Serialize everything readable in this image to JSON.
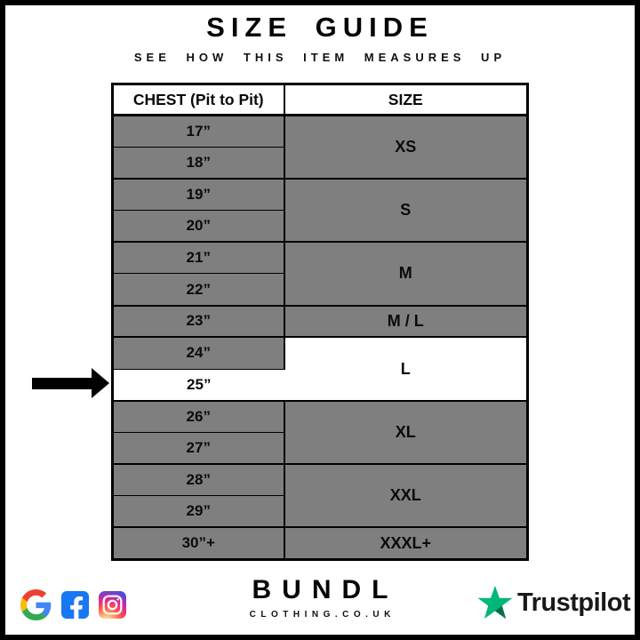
{
  "title": "SIZE GUIDE",
  "subtitle": "SEE HOW THIS ITEM MEASURES UP",
  "table": {
    "headers": {
      "chest": "CHEST (Pit to Pit)",
      "size": "SIZE"
    },
    "groups": [
      {
        "size": "XS",
        "size_highlight": false,
        "rows": [
          {
            "label": "17”",
            "highlight": false
          },
          {
            "label": "18”",
            "highlight": false
          }
        ]
      },
      {
        "size": "S",
        "size_highlight": false,
        "rows": [
          {
            "label": "19”",
            "highlight": false
          },
          {
            "label": "20”",
            "highlight": false
          }
        ]
      },
      {
        "size": "M",
        "size_highlight": false,
        "rows": [
          {
            "label": "21”",
            "highlight": false
          },
          {
            "label": "22”",
            "highlight": false
          }
        ]
      },
      {
        "size": "M / L",
        "size_highlight": false,
        "rows": [
          {
            "label": "23”",
            "highlight": false
          }
        ]
      },
      {
        "size": "L",
        "size_highlight": true,
        "rows": [
          {
            "label": "24”",
            "highlight": false
          },
          {
            "label": "25”",
            "highlight": true
          }
        ]
      },
      {
        "size": "XL",
        "size_highlight": false,
        "rows": [
          {
            "label": "26”",
            "highlight": false
          },
          {
            "label": "27”",
            "highlight": false
          }
        ]
      },
      {
        "size": "XXL",
        "size_highlight": false,
        "rows": [
          {
            "label": "28”",
            "highlight": false
          },
          {
            "label": "29”",
            "highlight": false
          }
        ]
      },
      {
        "size": "XXXL+",
        "size_highlight": false,
        "rows": [
          {
            "label": "30”+",
            "highlight": false
          }
        ]
      }
    ]
  },
  "chart_data": {
    "type": "table",
    "title": "SIZE GUIDE",
    "subtitle": "SEE HOW THIS ITEM MEASURES UP",
    "columns": [
      "CHEST (Pit to Pit)",
      "SIZE"
    ],
    "rows": [
      [
        "17”",
        "XS"
      ],
      [
        "18”",
        "XS"
      ],
      [
        "19”",
        "S"
      ],
      [
        "20”",
        "S"
      ],
      [
        "21”",
        "M"
      ],
      [
        "22”",
        "M"
      ],
      [
        "23”",
        "M / L"
      ],
      [
        "24”",
        "L"
      ],
      [
        "25”",
        "L"
      ],
      [
        "26”",
        "XL"
      ],
      [
        "27”",
        "XL"
      ],
      [
        "28”",
        "XXL"
      ],
      [
        "29”",
        "XXL"
      ],
      [
        "30”+",
        "XXXL+"
      ]
    ],
    "highlighted_row": "25”",
    "highlighted_size": "L"
  },
  "arrow": {
    "target_row": "25”"
  },
  "footer": {
    "brand": "BUNDL",
    "domain": "CLOTHING.CO.UK",
    "trustpilot_label": "Trustpilot",
    "social_icons": [
      "google",
      "facebook",
      "instagram"
    ]
  },
  "colors": {
    "cell_gray": "#7f7f7f",
    "highlight_white": "#ffffff",
    "border_black": "#000000",
    "facebook_blue": "#1877F2",
    "trustpilot_green": "#00B67A",
    "trustpilot_dark": "#0a6e4b",
    "google_blue": "#4285F4",
    "google_red": "#EA4335",
    "google_yellow": "#FBBC05",
    "google_green": "#34A853"
  }
}
